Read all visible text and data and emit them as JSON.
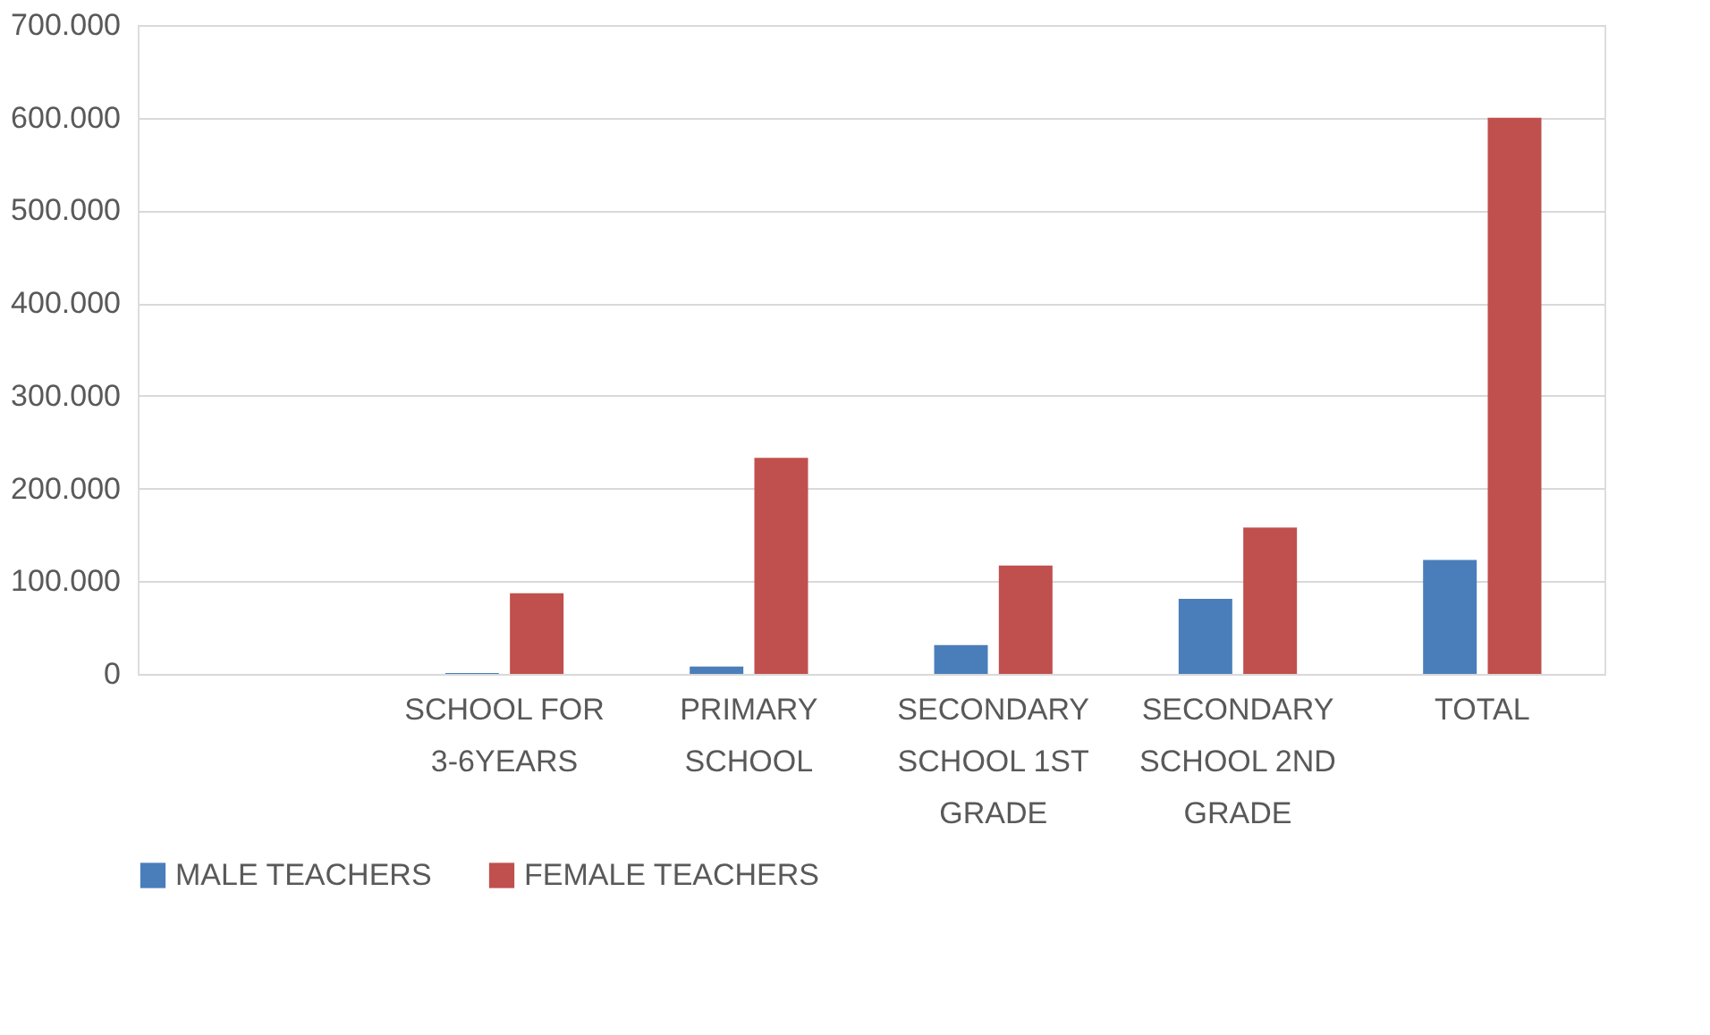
{
  "chart_data": {
    "type": "bar",
    "categories": [
      null,
      "SCHOOL FOR 3-6YEARS",
      "PRIMARY SCHOOL",
      "SECONDARY SCHOOL 1ST GRADE",
      "SECONDARY SCHOOL 2ND GRADE",
      "TOTAL"
    ],
    "series": [
      {
        "name": "MALE TEACHERS",
        "color": "#4a7ebb",
        "values": [
          null,
          1000,
          8000,
          31000,
          81000,
          123000
        ]
      },
      {
        "name": "FEMALE TEACHERS",
        "color": "#c0504d",
        "values": [
          null,
          87000,
          233000,
          117000,
          158000,
          600000
        ]
      }
    ],
    "ylim": [
      0,
      700000
    ],
    "yticks": [
      {
        "value": 0,
        "label": "0"
      },
      {
        "value": 100000,
        "label": "100.000"
      },
      {
        "value": 200000,
        "label": "200.000"
      },
      {
        "value": 300000,
        "label": "300.000"
      },
      {
        "value": 400000,
        "label": "400.000"
      },
      {
        "value": 500000,
        "label": "500.000"
      },
      {
        "value": 600000,
        "label": "600.000"
      },
      {
        "value": 700000,
        "label": "700.000"
      }
    ],
    "grid": "y",
    "legend": "bottom"
  }
}
